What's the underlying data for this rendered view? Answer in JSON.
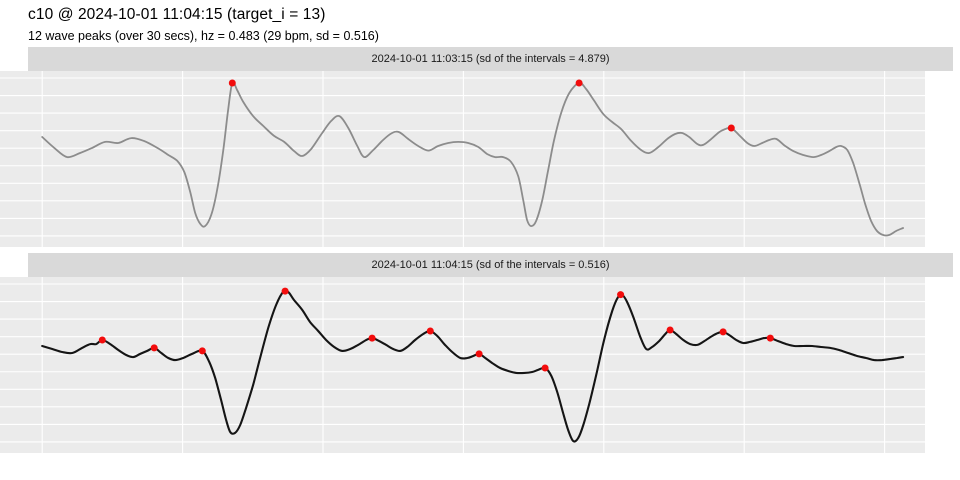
{
  "header": {
    "title": "c10 @ 2024-10-01 11:04:15 (target_i = 13)",
    "subtitle": "12 wave peaks (over 30 secs), hz = 0.483 (29 bpm, sd = 0.516)"
  },
  "style": {
    "panel_bg": "#ebebeb",
    "strip_bg": "#d9d9d9",
    "grid_color": "#ffffff",
    "peak_color": "#f20c0c",
    "title_color": "#000000"
  },
  "chart_data": [
    {
      "type": "line",
      "strip_label": "2024-10-01 11:03:15 (sd of the intervals = 4.879)",
      "line_color": "#8c8c8c",
      "point_color": "#f20c0c",
      "xlabel": "",
      "ylabel": "",
      "x_unit": "seconds",
      "x_ticks": [
        0,
        5,
        10,
        15,
        20,
        25,
        30
      ],
      "x_range": [
        0,
        30.7
      ],
      "y_range": [
        0,
        100
      ],
      "grid": true,
      "legend": "none",
      "points": [
        [
          0,
          62.5
        ],
        [
          0.43,
          56.3
        ],
        [
          0.89,
          51.1
        ],
        [
          1.35,
          53.4
        ],
        [
          1.78,
          56.3
        ],
        [
          2.24,
          59.7
        ],
        [
          2.71,
          59.1
        ],
        [
          3.17,
          61.9
        ],
        [
          3.63,
          60.2
        ],
        [
          4.1,
          56.3
        ],
        [
          4.49,
          52.3
        ],
        [
          4.81,
          48.9
        ],
        [
          5.06,
          42.6
        ],
        [
          5.27,
          31.3
        ],
        [
          5.45,
          19.3
        ],
        [
          5.63,
          13.1
        ],
        [
          5.8,
          11.9
        ],
        [
          6.02,
          18.2
        ],
        [
          6.23,
          32.4
        ],
        [
          6.45,
          55.1
        ],
        [
          6.62,
          77.8
        ],
        [
          6.77,
          93.2
        ],
        [
          6.94,
          89.2
        ],
        [
          7.16,
          82.4
        ],
        [
          7.51,
          74.4
        ],
        [
          7.87,
          68.8
        ],
        [
          8.26,
          63.1
        ],
        [
          8.62,
          59.7
        ],
        [
          8.97,
          54.5
        ],
        [
          9.26,
          51.7
        ],
        [
          9.58,
          55.7
        ],
        [
          9.97,
          64.8
        ],
        [
          10.29,
          71.6
        ],
        [
          10.58,
          74.4
        ],
        [
          10.9,
          67.6
        ],
        [
          11.22,
          57.4
        ],
        [
          11.47,
          51.1
        ],
        [
          11.79,
          55.1
        ],
        [
          12.14,
          60.8
        ],
        [
          12.46,
          64.8
        ],
        [
          12.71,
          65.3
        ],
        [
          13.03,
          61.4
        ],
        [
          13.39,
          57.4
        ],
        [
          13.75,
          54.8
        ],
        [
          14.1,
          57.4
        ],
        [
          14.46,
          59.1
        ],
        [
          14.81,
          59.7
        ],
        [
          15.17,
          59.1
        ],
        [
          15.53,
          56.8
        ],
        [
          15.85,
          52.8
        ],
        [
          16.13,
          51.1
        ],
        [
          16.42,
          51.1
        ],
        [
          16.7,
          48.3
        ],
        [
          16.95,
          40.3
        ],
        [
          17.13,
          26.7
        ],
        [
          17.27,
          15.3
        ],
        [
          17.41,
          11.9
        ],
        [
          17.59,
          14.8
        ],
        [
          17.81,
          26.7
        ],
        [
          18.02,
          43.8
        ],
        [
          18.23,
          60.8
        ],
        [
          18.48,
          76.1
        ],
        [
          18.77,
          87.5
        ],
        [
          19.12,
          93.2
        ],
        [
          19.37,
          89.8
        ],
        [
          19.66,
          83
        ],
        [
          19.98,
          75.6
        ],
        [
          20.3,
          71
        ],
        [
          20.62,
          67
        ],
        [
          20.98,
          60.2
        ],
        [
          21.33,
          55.1
        ],
        [
          21.62,
          53.4
        ],
        [
          21.94,
          56.8
        ],
        [
          22.26,
          61.4
        ],
        [
          22.54,
          64.2
        ],
        [
          22.79,
          64.8
        ],
        [
          23.04,
          62.5
        ],
        [
          23.33,
          58.5
        ],
        [
          23.54,
          58
        ],
        [
          23.83,
          61.4
        ],
        [
          24.11,
          65.3
        ],
        [
          24.32,
          67
        ],
        [
          24.54,
          67.6
        ],
        [
          24.82,
          63.6
        ],
        [
          25.11,
          59.1
        ],
        [
          25.36,
          57.4
        ],
        [
          25.64,
          59.1
        ],
        [
          25.89,
          60.8
        ],
        [
          26.14,
          61.4
        ],
        [
          26.46,
          57.4
        ],
        [
          26.75,
          54.5
        ],
        [
          27.1,
          52.3
        ],
        [
          27.46,
          51.1
        ],
        [
          27.74,
          52.3
        ],
        [
          28.03,
          54.5
        ],
        [
          28.28,
          56.8
        ],
        [
          28.45,
          57.4
        ],
        [
          28.67,
          55.1
        ],
        [
          28.88,
          47.7
        ],
        [
          29.09,
          36.9
        ],
        [
          29.31,
          24.4
        ],
        [
          29.52,
          14.8
        ],
        [
          29.73,
          9.1
        ],
        [
          29.95,
          6.8
        ],
        [
          30.16,
          6.8
        ],
        [
          30.41,
          9.1
        ],
        [
          30.66,
          10.8
        ]
      ],
      "peaks": [
        [
          6.77,
          93.2
        ],
        [
          19.12,
          93.2
        ],
        [
          24.54,
          67.6
        ]
      ]
    },
    {
      "type": "line",
      "strip_label": "2024-10-01 11:04:15 (sd of the intervals = 0.516)",
      "line_color": "#151515",
      "point_color": "#f20c0c",
      "xlabel": "",
      "ylabel": "",
      "x_unit": "seconds",
      "x_ticks": [
        0,
        5,
        10,
        15,
        20,
        25,
        30
      ],
      "x_range": [
        0,
        30.7
      ],
      "y_range": [
        0,
        100
      ],
      "grid": true,
      "legend": "none",
      "points": [
        [
          0,
          60.8
        ],
        [
          0.36,
          59.1
        ],
        [
          0.71,
          57.4
        ],
        [
          1.07,
          56.8
        ],
        [
          1.42,
          59.7
        ],
        [
          1.71,
          61.9
        ],
        [
          1.92,
          61.9
        ],
        [
          2.14,
          64.2
        ],
        [
          2.42,
          61.9
        ],
        [
          2.71,
          58.5
        ],
        [
          2.99,
          55.7
        ],
        [
          3.24,
          54.5
        ],
        [
          3.49,
          56.3
        ],
        [
          3.74,
          58
        ],
        [
          3.99,
          59.7
        ],
        [
          4.24,
          56.8
        ],
        [
          4.49,
          54
        ],
        [
          4.74,
          52.8
        ],
        [
          5.02,
          54
        ],
        [
          5.34,
          56.3
        ],
        [
          5.7,
          58
        ],
        [
          5.95,
          51.7
        ],
        [
          6.16,
          42.6
        ],
        [
          6.37,
          30.1
        ],
        [
          6.55,
          18.8
        ],
        [
          6.7,
          11.9
        ],
        [
          6.87,
          11.4
        ],
        [
          7.05,
          15.9
        ],
        [
          7.26,
          25.6
        ],
        [
          7.51,
          38.6
        ],
        [
          7.76,
          54
        ],
        [
          8.05,
          71
        ],
        [
          8.33,
          84.1
        ],
        [
          8.58,
          91.5
        ],
        [
          8.76,
          91.5
        ],
        [
          8.97,
          86.9
        ],
        [
          9.26,
          81.3
        ],
        [
          9.54,
          74.4
        ],
        [
          9.83,
          69.3
        ],
        [
          10.11,
          64.2
        ],
        [
          10.4,
          60.2
        ],
        [
          10.68,
          58
        ],
        [
          10.97,
          59.1
        ],
        [
          11.25,
          61.4
        ],
        [
          11.54,
          64.2
        ],
        [
          11.75,
          65.3
        ],
        [
          12,
          63.6
        ],
        [
          12.25,
          61.4
        ],
        [
          12.5,
          59.1
        ],
        [
          12.75,
          58
        ],
        [
          13,
          60.2
        ],
        [
          13.28,
          64.2
        ],
        [
          13.57,
          67.6
        ],
        [
          13.82,
          69.3
        ],
        [
          14.07,
          66.5
        ],
        [
          14.32,
          61.9
        ],
        [
          14.6,
          57.4
        ],
        [
          14.89,
          54
        ],
        [
          15.14,
          54
        ],
        [
          15.35,
          55.1
        ],
        [
          15.56,
          56.3
        ],
        [
          15.78,
          54
        ],
        [
          16.03,
          51.1
        ],
        [
          16.31,
          48.3
        ],
        [
          16.6,
          46.6
        ],
        [
          16.88,
          45.5
        ],
        [
          17.17,
          45.5
        ],
        [
          17.45,
          46
        ],
        [
          17.66,
          47.2
        ],
        [
          17.91,
          48.3
        ],
        [
          18.13,
          43.8
        ],
        [
          18.34,
          34.7
        ],
        [
          18.55,
          22.7
        ],
        [
          18.73,
          13.1
        ],
        [
          18.91,
          6.8
        ],
        [
          19.09,
          8.5
        ],
        [
          19.27,
          15.9
        ],
        [
          19.48,
          27.8
        ],
        [
          19.73,
          44.3
        ],
        [
          20.01,
          64.2
        ],
        [
          20.3,
          80.7
        ],
        [
          20.51,
          88.6
        ],
        [
          20.66,
          89.8
        ],
        [
          20.83,
          85.8
        ],
        [
          21.05,
          77.3
        ],
        [
          21.3,
          65.9
        ],
        [
          21.51,
          59.1
        ],
        [
          21.72,
          60.2
        ],
        [
          21.97,
          63.6
        ],
        [
          22.19,
          67.6
        ],
        [
          22.36,
          69.9
        ],
        [
          22.58,
          67.6
        ],
        [
          22.83,
          64.2
        ],
        [
          23.08,
          61.9
        ],
        [
          23.33,
          61.4
        ],
        [
          23.58,
          63.6
        ],
        [
          23.86,
          66.5
        ],
        [
          24.07,
          68.2
        ],
        [
          24.25,
          68.8
        ],
        [
          24.47,
          67
        ],
        [
          24.72,
          64.2
        ],
        [
          24.96,
          62.5
        ],
        [
          25.21,
          63.1
        ],
        [
          25.46,
          64.2
        ],
        [
          25.71,
          65.3
        ],
        [
          25.93,
          65.3
        ],
        [
          26.21,
          63.6
        ],
        [
          26.5,
          61.9
        ],
        [
          26.78,
          60.8
        ],
        [
          27.1,
          60.8
        ],
        [
          27.42,
          60.8
        ],
        [
          27.74,
          60.2
        ],
        [
          28.06,
          59.7
        ],
        [
          28.38,
          58.5
        ],
        [
          28.7,
          56.8
        ],
        [
          29.02,
          55.1
        ],
        [
          29.34,
          54
        ],
        [
          29.63,
          52.8
        ],
        [
          29.91,
          52.8
        ],
        [
          30.2,
          53.4
        ],
        [
          30.45,
          54
        ],
        [
          30.66,
          54.5
        ]
      ],
      "peaks": [
        [
          2.14,
          64.2
        ],
        [
          3.99,
          59.7
        ],
        [
          5.7,
          58
        ],
        [
          8.65,
          92
        ],
        [
          11.75,
          65.3
        ],
        [
          13.82,
          69.3
        ],
        [
          15.56,
          56.3
        ],
        [
          17.91,
          48.3
        ],
        [
          20.6,
          90
        ],
        [
          22.36,
          69.9
        ],
        [
          24.25,
          68.8
        ],
        [
          25.93,
          65.3
        ]
      ]
    }
  ]
}
